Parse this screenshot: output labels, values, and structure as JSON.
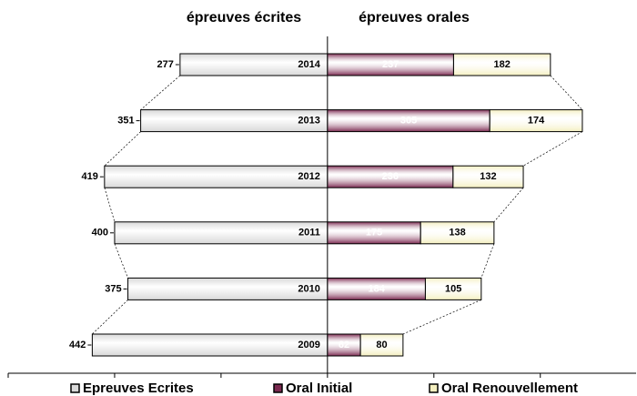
{
  "chart_data": {
    "type": "bar",
    "orientation": "horizontal",
    "left_title": "épreuves écrites",
    "right_title": "épreuves orales",
    "categories": [
      "2014",
      "2013",
      "2012",
      "2011",
      "2010",
      "2009"
    ],
    "series": [
      {
        "name": "Epreuves Ecrites",
        "color": "#d9d9d9",
        "side": "left",
        "values": [
          277,
          351,
          419,
          400,
          375,
          442
        ]
      },
      {
        "name": "Oral Initial",
        "color": "#7b2950",
        "side": "right",
        "values": [
          237,
          305,
          236,
          175,
          184,
          62
        ]
      },
      {
        "name": "Oral Renouvellement",
        "color": "#f4efbf",
        "side": "right",
        "values": [
          182,
          174,
          132,
          138,
          105,
          80
        ]
      }
    ],
    "xlim": [
      -600,
      580
    ],
    "xticks": [
      -600,
      -400,
      -200,
      0,
      200,
      400
    ],
    "legend": "bottom"
  }
}
